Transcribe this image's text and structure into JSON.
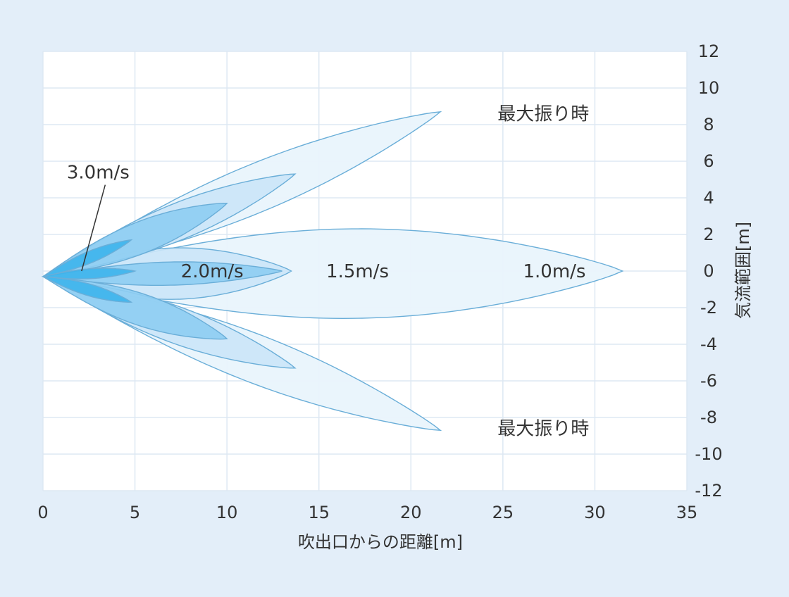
{
  "chart_data": {
    "type": "area",
    "title": "",
    "xlabel": "吹出口からの距離[m]",
    "ylabel": "気流範囲[m]",
    "xlim": [
      0,
      35
    ],
    "ylim": [
      -12,
      12
    ],
    "x_ticks": [
      "0",
      "5",
      "10",
      "15",
      "20",
      "25",
      "30",
      "35"
    ],
    "y_ticks": [
      "12",
      "10",
      "8",
      "6",
      "4",
      "2",
      "0",
      "-2",
      "-4",
      "-6",
      "-8",
      "-10",
      "-12"
    ],
    "grid": true,
    "colors": {
      "plot_bg": "#ffffff",
      "grid": "#dde8f3",
      "outline": "#6aaed8",
      "v1_0": "#e9f4fc",
      "v1_5": "#cbe6f8",
      "v2_0": "#8ecdf2",
      "v3_0": "#3db4ec"
    },
    "series": [
      {
        "name": "1.0m/s",
        "lobes": [
          {
            "tip": [
              31.5,
              0
            ],
            "half_width": 2.7
          },
          {
            "tip": [
              21.6,
              8.7
            ],
            "half_width": 1.45
          },
          {
            "tip": [
              21.6,
              -8.7
            ],
            "half_width": 1.45
          }
        ]
      },
      {
        "name": "1.5m/s",
        "lobes": [
          {
            "tip": [
              13.5,
              0
            ],
            "half_width": 1.55
          },
          {
            "tip": [
              13.7,
              5.3
            ],
            "half_width": 1.1
          },
          {
            "tip": [
              13.7,
              -5.3
            ],
            "half_width": 1.1
          }
        ]
      },
      {
        "name": "2.0m/s",
        "lobes": [
          {
            "tip": [
              13,
              0
            ],
            "half_width": 0.7
          },
          {
            "tip": [
              10,
              3.7
            ],
            "half_width": 0.95
          },
          {
            "tip": [
              10,
              -3.7
            ],
            "half_width": 0.95
          }
        ]
      },
      {
        "name": "3.0m/s",
        "lobes": [
          {
            "tip": [
              5,
              0
            ],
            "half_width": 0.3
          },
          {
            "tip": [
              4.8,
              1.7
            ],
            "half_width": 0.35
          },
          {
            "tip": [
              4.8,
              -1.7
            ],
            "half_width": 0.35
          }
        ]
      }
    ],
    "annotations": [
      {
        "text": "3.0m/s",
        "x": 3.0,
        "y": 5.4,
        "arrow_to": [
          2.1,
          0
        ]
      },
      {
        "text": "2.0m/s",
        "x": 9.2,
        "y": 0
      },
      {
        "text": "1.5m/s",
        "x": 17.1,
        "y": 0
      },
      {
        "text": "1.0m/s",
        "x": 27.8,
        "y": 0
      },
      {
        "text": "最大振り時",
        "x": 27.2,
        "y": 8.6
      },
      {
        "text": "最大振り時",
        "x": 27.2,
        "y": -8.6
      }
    ]
  }
}
